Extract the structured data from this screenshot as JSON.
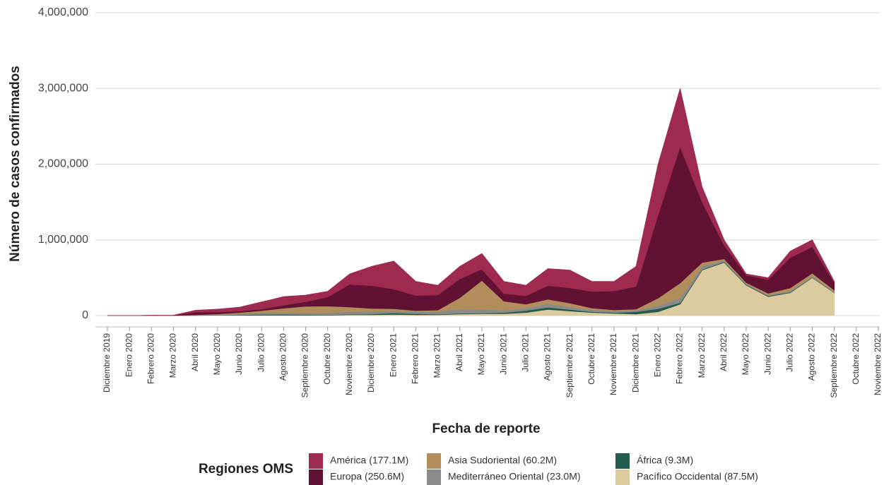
{
  "chart_data": {
    "type": "stacked_area",
    "x_label": "Fecha de reporte",
    "y_label": "Número de casos confirmados",
    "legend_title": "Regiones OMS",
    "categories": [
      "Diciembre 2019",
      "Enero 2020",
      "Febrero 2020",
      "Marzo 2020",
      "Abril 2020",
      "Mayo 2020",
      "Junio 2020",
      "Julio 2020",
      "Agosto 2020",
      "Septiembre 2020",
      "Octubre 2020",
      "Noviembre 2020",
      "Diciembre 2020",
      "Enero 2021",
      "Febrero 2021",
      "Marzo 2021",
      "Abril 2021",
      "Mayo 2021",
      "Junio 2021",
      "Julio 2021",
      "Agosto 2021",
      "Septiembre 2021",
      "Octubre 2021",
      "Noviembre 2021",
      "Diciembre 2021",
      "Enero 2022",
      "Febrero 2022",
      "Marzo 2022",
      "Abril 2022",
      "Mayo 2022",
      "Junio 2022",
      "Julio 2022",
      "Agosto 2022",
      "Septiembre 2022",
      "Octubre 2022",
      "Noviembre 2022"
    ],
    "series": [
      {
        "name": "América (177.1M)",
        "color": "#9e2a4f",
        "values": [
          0,
          0,
          0,
          1000,
          25000,
          38000,
          50000,
          95000,
          113000,
          87000,
          75000,
          137000,
          255000,
          370000,
          185000,
          127000,
          165000,
          207000,
          160000,
          140000,
          225000,
          235000,
          130000,
          125000,
          265000,
          670000,
          770000,
          200000,
          70000,
          15000,
          25000,
          85000,
          90000,
          15000,
          null,
          null
        ]
      },
      {
        "name": "Europa (250.6M)",
        "color": "#611232",
        "values": [
          0,
          0,
          0,
          3000,
          35000,
          25000,
          20000,
          20000,
          40000,
          60000,
          120000,
          300000,
          300000,
          260000,
          200000,
          200000,
          250000,
          150000,
          100000,
          110000,
          180000,
          200000,
          220000,
          250000,
          300000,
          1100000,
          1800000,
          800000,
          180000,
          100000,
          180000,
          400000,
          350000,
          100000,
          null,
          null
        ]
      },
      {
        "name": "Asia Sudoriental (60.2M)",
        "color": "#b38e5d",
        "values": [
          0,
          0,
          0,
          0,
          2000,
          5000,
          15000,
          30000,
          60000,
          90000,
          90000,
          60000,
          40000,
          25000,
          15000,
          20000,
          150000,
          380000,
          120000,
          50000,
          60000,
          50000,
          25000,
          15000,
          15000,
          100000,
          200000,
          50000,
          20000,
          15000,
          25000,
          40000,
          40000,
          20000,
          null,
          null
        ]
      },
      {
        "name": "Mediterráneo Oriental (23.0M)",
        "color": "#8a8a8a",
        "values": [
          0,
          0,
          0,
          1000,
          5000,
          10000,
          15000,
          20000,
          20000,
          20000,
          25000,
          35000,
          35000,
          30000,
          25000,
          35000,
          55000,
          50000,
          30000,
          35000,
          45000,
          35000,
          25000,
          20000,
          20000,
          40000,
          60000,
          40000,
          20000,
          10000,
          10000,
          15000,
          15000,
          10000,
          null,
          null
        ]
      },
      {
        "name": "África (9.3M)",
        "color": "#235b4e",
        "values": [
          0,
          0,
          0,
          0,
          1000,
          2000,
          5000,
          10000,
          12000,
          8000,
          5000,
          8000,
          10000,
          20000,
          15000,
          8000,
          10000,
          8000,
          15000,
          25000,
          30000,
          20000,
          10000,
          10000,
          30000,
          40000,
          20000,
          10000,
          10000,
          10000,
          10000,
          10000,
          5000,
          5000,
          null,
          null
        ]
      },
      {
        "name": "Pacífico Occidental (87.5M)",
        "color": "#dccb9e",
        "values": [
          0,
          0,
          2000,
          0,
          2000,
          5000,
          5000,
          5000,
          5000,
          5000,
          5000,
          10000,
          10000,
          15000,
          10000,
          10000,
          20000,
          25000,
          25000,
          40000,
          80000,
          60000,
          40000,
          30000,
          20000,
          50000,
          150000,
          600000,
          700000,
          400000,
          250000,
          300000,
          500000,
          300000,
          null,
          null
        ]
      }
    ],
    "ylim": [
      0,
      4000000
    ],
    "yticks": [
      0,
      {
        "value": 1000000,
        "label": "1,000,000"
      },
      {
        "value": 2000000,
        "label": "2,000,000"
      },
      {
        "value": 3000000,
        "label": "3,000,000"
      },
      {
        "value": 4000000,
        "label": "4,000,000"
      }
    ],
    "grid": true
  }
}
